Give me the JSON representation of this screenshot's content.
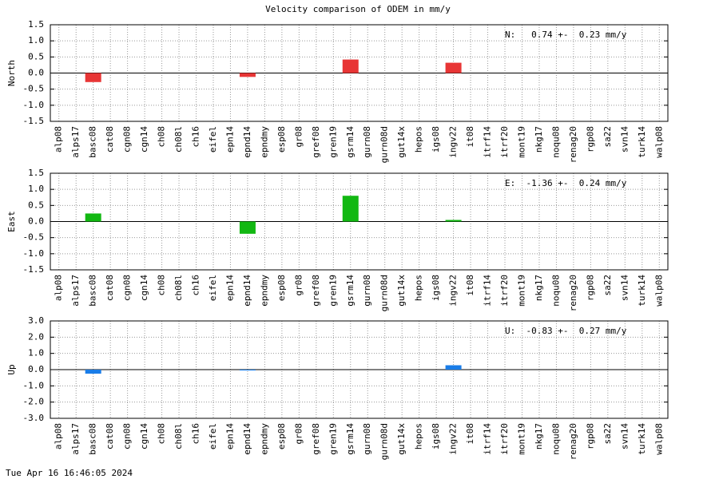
{
  "title": "Velocity comparison of ODEM in mm/y",
  "timestamp": "Tue Apr 16 16:46:05 2024",
  "chart_data": [
    {
      "type": "bar",
      "ylabel": "North",
      "annotation": "N:   0.74 +-  0.23 mm/y",
      "color": "#e83535",
      "categories": [
        "alp08",
        "alps17",
        "basc08",
        "cat08",
        "cgn08",
        "cgn14",
        "ch08",
        "ch08l",
        "ch16",
        "eifel",
        "epn14",
        "epnd14",
        "epndmy",
        "esp08",
        "gr08",
        "gref08",
        "gren19",
        "gsrm14",
        "gurn08",
        "gurn08d",
        "gut14x",
        "hepos",
        "igs08",
        "ingv22",
        "it08",
        "itrf14",
        "itrf20",
        "mont19",
        "nkg17",
        "noqu08",
        "renag20",
        "rgp08",
        "sa22",
        "svn14",
        "turk14",
        "walp08"
      ],
      "values": [
        0,
        0,
        -0.28,
        0,
        0,
        0,
        0,
        0,
        0,
        0,
        0,
        -0.12,
        0,
        0,
        0,
        0,
        0,
        0.42,
        0,
        0,
        0,
        0,
        0,
        0.32,
        0,
        0,
        0,
        0,
        0,
        0,
        0,
        0,
        0,
        0,
        0,
        0
      ],
      "ylim": [
        -1.5,
        1.5
      ],
      "yticks": [
        1.5,
        {
          "value": 1,
          "label": "1.0"
        },
        0.5,
        {
          "value": 0,
          "label": "0.0"
        },
        -0.5,
        {
          "value": -1,
          "label": "-1.0"
        },
        -1.5
      ],
      "grid": true
    },
    {
      "type": "bar",
      "ylabel": "East",
      "annotation": "E:  -1.36 +-  0.24 mm/y",
      "color": "#12b812",
      "categories": [
        "alp08",
        "alps17",
        "basc08",
        "cat08",
        "cgn08",
        "cgn14",
        "ch08",
        "ch08l",
        "ch16",
        "eifel",
        "epn14",
        "epnd14",
        "epndmy",
        "esp08",
        "gr08",
        "gref08",
        "gren19",
        "gsrm14",
        "gurn08",
        "gurn08d",
        "gut14x",
        "hepos",
        "igs08",
        "ingv22",
        "it08",
        "itrf14",
        "itrf20",
        "mont19",
        "nkg17",
        "noqu08",
        "renag20",
        "rgp08",
        "sa22",
        "svn14",
        "turk14",
        "walp08"
      ],
      "values": [
        0,
        0,
        0.25,
        0,
        0,
        0,
        0,
        0,
        0,
        0,
        0,
        -0.38,
        0,
        0,
        0,
        0,
        0,
        0.8,
        0,
        0,
        0,
        0,
        0,
        0.05,
        0,
        0,
        0,
        0,
        0,
        0,
        0,
        0,
        0,
        0,
        0,
        0
      ],
      "ylim": [
        -1.5,
        1.5
      ],
      "yticks": [
        1.5,
        {
          "value": 1,
          "label": "1.0"
        },
        0.5,
        {
          "value": 0,
          "label": "0.0"
        },
        -0.5,
        {
          "value": -1,
          "label": "-1.0"
        },
        -1.5
      ],
      "grid": true
    },
    {
      "type": "bar",
      "ylabel": "Up",
      "annotation": "U:  -0.83 +-  0.27 mm/y",
      "color": "#1a7de8",
      "categories": [
        "alp08",
        "alps17",
        "basc08",
        "cat08",
        "cgn08",
        "cgn14",
        "ch08",
        "ch08l",
        "ch16",
        "eifel",
        "epn14",
        "epnd14",
        "epndmy",
        "esp08",
        "gr08",
        "gref08",
        "gren19",
        "gsrm14",
        "gurn08",
        "gurn08d",
        "gut14x",
        "hepos",
        "igs08",
        "ingv22",
        "it08",
        "itrf14",
        "itrf20",
        "mont19",
        "nkg17",
        "noqu08",
        "renag20",
        "rgp08",
        "sa22",
        "svn14",
        "turk14",
        "walp08"
      ],
      "values": [
        0,
        0,
        -0.25,
        0,
        0,
        0,
        0,
        0,
        0,
        0,
        0,
        -0.05,
        0,
        0,
        0,
        0,
        0,
        0,
        0,
        0,
        0,
        0,
        0,
        0.27,
        0,
        0,
        0,
        0,
        0,
        0,
        0,
        0,
        0,
        0,
        0,
        0
      ],
      "ylim": [
        -3,
        3
      ],
      "yticks": [
        {
          "value": 3,
          "label": "3.0"
        },
        {
          "value": 2,
          "label": "2.0"
        },
        {
          "value": 1,
          "label": "1.0"
        },
        {
          "value": 0,
          "label": "0.0"
        },
        {
          "value": -1,
          "label": "-1.0"
        },
        {
          "value": -2,
          "label": "-2.0"
        },
        {
          "value": -3,
          "label": "-3.0"
        }
      ],
      "grid": true
    }
  ]
}
